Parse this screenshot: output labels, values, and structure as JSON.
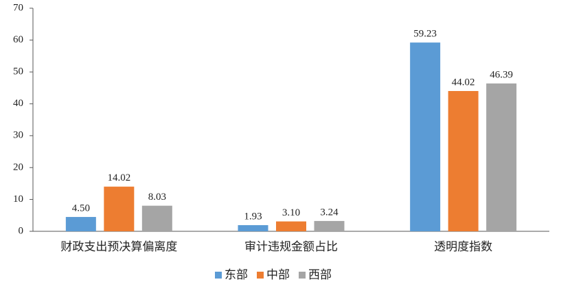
{
  "chart_data": {
    "type": "bar",
    "categories": [
      "财政支出预决算偏离度",
      "审计违规金额占比",
      "透明度指数"
    ],
    "series": [
      {
        "name": "东部",
        "color": "#5b9bd5",
        "values": [
          4.5,
          1.93,
          59.23
        ],
        "value_labels": [
          "4.50",
          "1.93",
          "59.23"
        ]
      },
      {
        "name": "中部",
        "color": "#ed7d31",
        "values": [
          14.02,
          3.1,
          44.02
        ],
        "value_labels": [
          "14.02",
          "3.10",
          "44.02"
        ]
      },
      {
        "name": "西部",
        "color": "#a5a5a5",
        "values": [
          8.03,
          3.24,
          46.39
        ],
        "value_labels": [
          "8.03",
          "3.24",
          "46.39"
        ]
      }
    ],
    "ylim": [
      0,
      70
    ],
    "yticks": [
      0,
      10,
      20,
      30,
      40,
      50,
      60,
      70
    ],
    "grid": false,
    "legend": "bottom"
  }
}
